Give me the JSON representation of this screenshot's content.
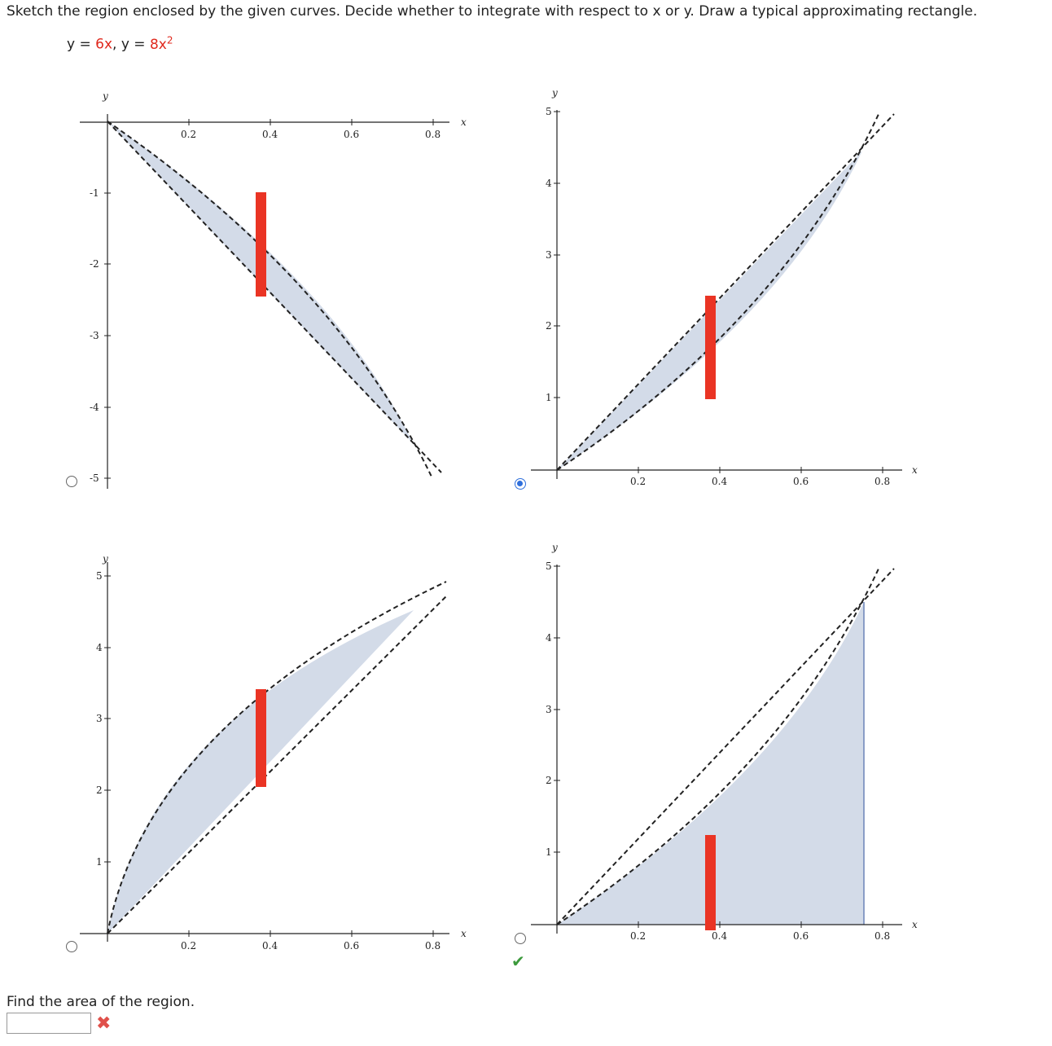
{
  "prompt": "Sketch the region enclosed by the given curves. Decide whether to integrate with respect to x or y. Draw a typical approximating rectangle.",
  "equation": {
    "y1": "y = ",
    "f1": "6x",
    "sep": ",  y = ",
    "f2": "8x",
    "exp": "2"
  },
  "options": [
    {
      "id": "A",
      "selected": false
    },
    {
      "id": "B",
      "selected": true
    },
    {
      "id": "C",
      "selected": false
    },
    {
      "id": "D",
      "selected": false
    }
  ],
  "feedback": {
    "check": "✔",
    "wrong": "✖"
  },
  "area": {
    "label": "Find the area of the region.",
    "value": ""
  },
  "colors": {
    "fill": "#d3dbe8",
    "rect": "#ea3424",
    "curve": "#222222",
    "selected": "#2f6fdb"
  },
  "graphs": {
    "xlabel": "x",
    "ylabel": "y",
    "xticks": [
      "0.2",
      "0.4",
      "0.6",
      "0.8"
    ],
    "A": {
      "yticks": [
        "-1",
        "-2",
        "-3",
        "-4",
        "-5"
      ]
    },
    "B": {
      "yticks": [
        "1",
        "2",
        "3",
        "4",
        "5"
      ]
    },
    "C": {
      "yticks": [
        "1",
        "2",
        "3",
        "4",
        "5"
      ]
    },
    "D": {
      "yticks": [
        "1",
        "2",
        "3",
        "4",
        "5"
      ]
    }
  }
}
